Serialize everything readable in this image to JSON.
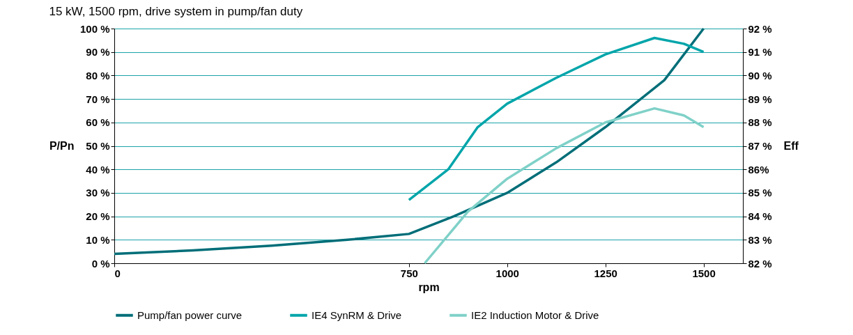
{
  "chart_data": {
    "type": "line",
    "title": "15 kW, 1500 rpm, drive system in pump/fan duty",
    "xlabel": "rpm",
    "ylabel": "P/Pn",
    "y2label": "Eff",
    "xlim": [
      0,
      1600
    ],
    "xticks": [
      0,
      750,
      1000,
      1250,
      1500
    ],
    "ylim": [
      0,
      100
    ],
    "yticks": [
      {
        "value": 0,
        "label": "0 %"
      },
      {
        "value": 10,
        "label": "10 %"
      },
      {
        "value": 20,
        "label": "20 %"
      },
      {
        "value": 30,
        "label": "30 %"
      },
      {
        "value": 40,
        "label": "40 %"
      },
      {
        "value": 50,
        "label": "50 %"
      },
      {
        "value": 60,
        "label": "60 %"
      },
      {
        "value": 70,
        "label": "70 %"
      },
      {
        "value": 80,
        "label": "80 %"
      },
      {
        "value": 90,
        "label": "90 %"
      },
      {
        "value": 100,
        "label": "100 %"
      }
    ],
    "y2lim": [
      82,
      92
    ],
    "y2ticks": [
      {
        "value": 82,
        "label": "82 %"
      },
      {
        "value": 83,
        "label": "83 %"
      },
      {
        "value": 84,
        "label": "84 %"
      },
      {
        "value": 85,
        "label": "85 %"
      },
      {
        "value": 86,
        "label": "86%"
      },
      {
        "value": 87,
        "label": "87 %"
      },
      {
        "value": 88,
        "label": "88 %"
      },
      {
        "value": 89,
        "label": "89 %"
      },
      {
        "value": 90,
        "label": "90 %"
      },
      {
        "value": 91,
        "label": "91 %"
      },
      {
        "value": 92,
        "label": "92 %"
      }
    ],
    "grid": "y",
    "legend": "bottom",
    "line_style": "solid",
    "series": [
      {
        "name": "Pump/fan power curve",
        "color": "#006e78",
        "x": [
          0,
          200,
          400,
          593,
          750,
          864,
          1000,
          1125,
          1250,
          1400,
          1500
        ],
        "values": [
          4,
          5.5,
          7.5,
          10,
          12.5,
          20,
          30,
          43,
          58,
          78,
          100
        ]
      },
      {
        "name": "IE4 SynRM & Drive",
        "color": "#00a5aa",
        "axis": "y2",
        "x": [
          750,
          850,
          925,
          1000,
          1125,
          1250,
          1375,
          1450,
          1500
        ],
        "values": [
          84.7,
          86.0,
          87.8,
          88.8,
          89.9,
          90.9,
          91.6,
          91.35,
          91.0
        ]
      },
      {
        "name": "IE2 Induction Motor & Drive",
        "color": "#7fd1c8",
        "axis": "y2",
        "x": [
          790,
          850,
          900,
          1000,
          1125,
          1250,
          1375,
          1450,
          1500
        ],
        "values": [
          82.0,
          83.2,
          84.2,
          85.6,
          86.9,
          88.0,
          88.6,
          88.3,
          87.8
        ]
      }
    ]
  }
}
